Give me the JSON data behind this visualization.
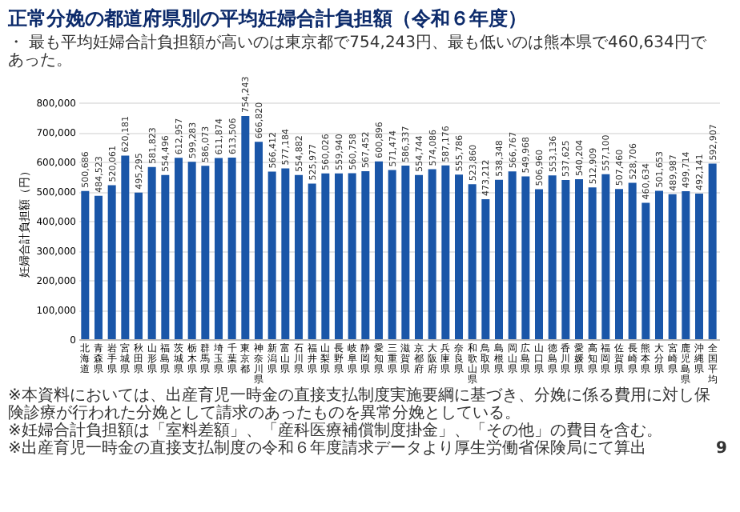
{
  "chart_data": {
    "type": "bar",
    "title": "正常分娩の都道府県別の平均妊婦合計負担額（令和６年度）",
    "subtitle": "・ 最も平均妊婦合計負担額が高いのは東京都で754,243円、最も低いのは熊本県で460,634円であった。",
    "ylabel": "妊婦合計負担額（円）",
    "categories": [
      "北海道",
      "青森県",
      "岩手県",
      "宮城県",
      "秋田県",
      "山形県",
      "福島県",
      "茨城県",
      "栃木県",
      "群馬県",
      "埼玉県",
      "千葉県",
      "東京都",
      "神奈川県",
      "新潟県",
      "富山県",
      "石川県",
      "福井県",
      "山梨県",
      "長野県",
      "岐阜県",
      "静岡県",
      "愛知県",
      "三重県",
      "滋賀県",
      "京都府",
      "大阪府",
      "兵庫県",
      "奈良県",
      "和歌山県",
      "鳥取県",
      "島根県",
      "岡山県",
      "広島県",
      "山口県",
      "徳島県",
      "香川県",
      "愛媛県",
      "高知県",
      "福岡県",
      "佐賀県",
      "長崎県",
      "熊本県",
      "大分県",
      "宮崎県",
      "鹿児島県",
      "沖縄県",
      null,
      "全国平均"
    ],
    "values": [
      500686,
      484523,
      520061,
      620181,
      495295,
      581823,
      554496,
      612957,
      599283,
      586073,
      611874,
      613506,
      754243,
      666820,
      566412,
      577184,
      554882,
      525977,
      560026,
      559940,
      560758,
      567452,
      600896,
      571474,
      586337,
      554744,
      574086,
      587176,
      555786,
      523860,
      473212,
      538348,
      566767,
      549968,
      506960,
      553136,
      537625,
      540204,
      512909,
      557100,
      507460,
      528706,
      460634,
      501653,
      489987,
      499714,
      492141,
      null,
      592907
    ],
    "color": "#1a56a8",
    "ylim": [
      0,
      800000
    ],
    "yticks": [
      0,
      {
        "value": 100000,
        "label": "100,000"
      },
      {
        "value": 200000,
        "label": "200,000"
      },
      {
        "value": 300000,
        "label": "300,000"
      },
      {
        "value": 400000,
        "label": "400,000"
      },
      {
        "value": 500000,
        "label": "500,000"
      },
      {
        "value": 600000,
        "label": "600,000"
      },
      {
        "value": 700000,
        "label": "700,000"
      },
      {
        "value": 800000,
        "label": "800,000"
      }
    ],
    "grid": "y",
    "value_labels": [
      "500,686",
      "484,523",
      "520,061",
      "620,181",
      "495,295",
      "581,823",
      "554,496",
      "612,957",
      "599,283",
      "586,073",
      "611,874",
      "613,506",
      "754,243",
      "666,820",
      "566,412",
      "577,184",
      "554,882",
      "525,977",
      "560,026",
      "559,940",
      "560,758",
      "567,452",
      "600,896",
      "571,474",
      "586,337",
      "554,744",
      "574,086",
      "587,176",
      "555,786",
      "523,860",
      "473,212",
      "538,348",
      "566,767",
      "549,968",
      "506,960",
      "553,136",
      "537,625",
      "540,204",
      "512,909",
      "557,100",
      "507,460",
      "528,706",
      "460,634",
      "501,653",
      "489,987",
      "499,714",
      "492,141",
      null,
      "592,907"
    ],
    "annotations": [
      "※本資料においては、出産育児一時金の直接支払制度実施要綱に基づき、分娩に係る費用に対し保険診療が行われた分娩として請求のあったものを異常分娩としている。",
      "※妊婦合計負担額は「室料差額」、「産科医療補償制度掛金」、「その他」の費目を含む。",
      "※出産育児一時金の直接支払制度の令和６年度請求データより厚生労働省保険局にて算出",
      "9"
    ]
  }
}
